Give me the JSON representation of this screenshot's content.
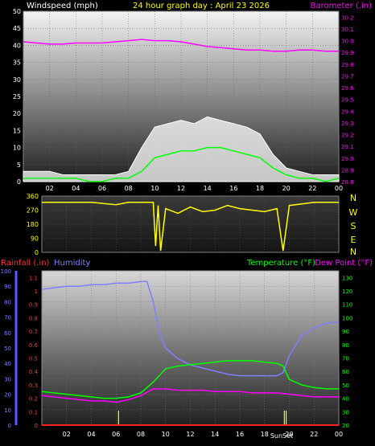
{
  "header": {
    "windspeed_label": "Windspeed (mph)",
    "graph_title": "24 hour graph day : April 23 2026",
    "barometer_label": "Barometer (.in)"
  },
  "direction": {
    "compass": [
      "N",
      "W",
      "S",
      "E",
      "N"
    ]
  },
  "bottom_header": {
    "rainfall_label": "Rainfall (.in)",
    "humidity_label": "Humidity",
    "temperature_label": "Temperature (°F)",
    "dewpoint_label": "Dew Point (°F)"
  },
  "markers": {
    "sunrise": "06",
    "sunset": "SunSet"
  },
  "colors": {
    "wind": "#ffffff",
    "wind_avg": "#00ff00",
    "barometer": "#ff00ff",
    "direction": "#ffff00",
    "temperature": "#00ff00",
    "dewpoint": "#ff00ff",
    "humidity": "#7f7fff",
    "rainfall": "#ff2020"
  },
  "chart_data": [
    {
      "type": "line",
      "x_ticks": [
        "02",
        "04",
        "06",
        "08",
        "10",
        "12",
        "14",
        "16",
        "18",
        "20",
        "22",
        "00"
      ],
      "y_left_ticks": [
        0,
        5,
        10,
        15,
        20,
        25,
        30,
        35,
        40,
        45,
        50
      ],
      "y_right_ticks": [
        28.8,
        28.9,
        29.0,
        29.1,
        29.2,
        29.3,
        29.4,
        29.5,
        29.6,
        29.7,
        29.8,
        29.9,
        30.0,
        30.1,
        30.2
      ],
      "ylim_left": [
        0,
        50
      ],
      "ylim_right": [
        28.8,
        30.25
      ],
      "series": [
        {
          "name": "Windspeed (mph)",
          "axis": "left",
          "x": [
            0,
            1,
            2,
            3,
            4,
            5,
            6,
            7,
            8,
            9,
            10,
            11,
            12,
            13,
            14,
            15,
            16,
            17,
            18,
            19,
            20,
            21,
            22,
            23,
            24
          ],
          "values": [
            1,
            1,
            1,
            1,
            1,
            0,
            0,
            1,
            1,
            3,
            7,
            8,
            9,
            9,
            10,
            10,
            9,
            8,
            7,
            4,
            2,
            1,
            1,
            0,
            1
          ]
        },
        {
          "name": "Wind gust (mph)",
          "axis": "left",
          "x": [
            0,
            1,
            2,
            3,
            4,
            5,
            6,
            7,
            8,
            9,
            10,
            11,
            12,
            13,
            14,
            15,
            16,
            17,
            18,
            19,
            20,
            21,
            22,
            23,
            24
          ],
          "values": [
            3,
            3,
            3,
            2,
            2,
            2,
            2,
            2,
            3,
            10,
            16,
            17,
            18,
            17,
            19,
            18,
            17,
            16,
            14,
            8,
            4,
            3,
            2,
            2,
            2
          ]
        },
        {
          "name": "Barometer (.in)",
          "axis": "right",
          "x": [
            0,
            1,
            2,
            3,
            4,
            5,
            6,
            7,
            8,
            9,
            10,
            11,
            12,
            13,
            14,
            15,
            16,
            17,
            18,
            19,
            20,
            21,
            22,
            23,
            24
          ],
          "values": [
            29.99,
            29.98,
            29.97,
            29.97,
            29.98,
            29.98,
            29.98,
            29.99,
            30.0,
            30.01,
            30.0,
            30.0,
            29.99,
            29.97,
            29.95,
            29.94,
            29.93,
            29.92,
            29.92,
            29.91,
            29.91,
            29.92,
            29.92,
            29.91,
            29.91
          ]
        }
      ]
    },
    {
      "type": "line",
      "x_ticks": [],
      "y_ticks": [
        0,
        90,
        180,
        270,
        360
      ],
      "ylim": [
        0,
        360
      ],
      "series": [
        {
          "name": "Wind direction",
          "x": [
            0,
            2,
            4,
            6,
            7,
            8,
            8.5,
            9,
            9.2,
            9.4,
            9.6,
            10,
            11,
            12,
            13,
            14,
            15,
            16,
            17,
            18,
            19,
            19.5,
            20,
            22,
            24
          ],
          "values": [
            320,
            320,
            320,
            305,
            320,
            320,
            320,
            320,
            40,
            300,
            10,
            280,
            250,
            290,
            260,
            270,
            300,
            280,
            270,
            260,
            280,
            10,
            300,
            320,
            320
          ]
        }
      ]
    },
    {
      "type": "line",
      "x_ticks": [
        "02",
        "04",
        "06",
        "08",
        "10",
        "12",
        "14",
        "16",
        "18",
        "20",
        "22",
        "00"
      ],
      "y_left_ticks": [
        0,
        10,
        20,
        30,
        40,
        50,
        60,
        70,
        80,
        90,
        100
      ],
      "y_rain_ticks": [
        0,
        0.1,
        0.2,
        0.3,
        0.4,
        0.5,
        0.6,
        0.7,
        0.8,
        0.9,
        1,
        1.1
      ],
      "y_right_ticks": [
        20,
        30,
        40,
        50,
        60,
        70,
        80,
        90,
        100,
        110,
        120,
        130
      ],
      "ylim_humidity": [
        0,
        100
      ],
      "ylim_rain": [
        0,
        1.15
      ],
      "ylim_temp": [
        20,
        135
      ],
      "series": [
        {
          "name": "Humidity",
          "axis": "left",
          "x": [
            0,
            1,
            2,
            3,
            4,
            5,
            6,
            7,
            8,
            8.5,
            9,
            9.5,
            10,
            11,
            12,
            13,
            14,
            15,
            16,
            17,
            18,
            19,
            19.5,
            20,
            21,
            22,
            23,
            24
          ],
          "values": [
            88,
            89,
            90,
            90,
            91,
            91,
            92,
            92,
            93,
            93,
            80,
            60,
            50,
            43,
            39,
            37,
            35,
            33,
            32,
            32,
            32,
            32,
            34,
            45,
            58,
            63,
            66,
            67
          ]
        },
        {
          "name": "Temperature (°F)",
          "axis": "right",
          "x": [
            0,
            1,
            2,
            3,
            4,
            5,
            6,
            7,
            8,
            9,
            10,
            11,
            12,
            13,
            14,
            15,
            16,
            17,
            18,
            19,
            19.5,
            20,
            21,
            22,
            23,
            24
          ],
          "values": [
            45,
            44,
            43,
            42,
            41,
            40,
            40,
            41,
            44,
            52,
            62,
            64,
            65,
            66,
            67,
            68,
            68,
            68,
            67,
            66,
            64,
            54,
            50,
            48,
            47,
            47
          ]
        },
        {
          "name": "Dew Point (°F)",
          "axis": "right",
          "x": [
            0,
            1,
            2,
            3,
            4,
            5,
            6,
            7,
            8,
            9,
            10,
            11,
            12,
            13,
            14,
            15,
            16,
            17,
            18,
            19,
            20,
            21,
            22,
            23,
            24
          ],
          "values": [
            42,
            41,
            40,
            39,
            38,
            38,
            37,
            39,
            42,
            47,
            47,
            46,
            46,
            46,
            45,
            45,
            45,
            44,
            44,
            44,
            43,
            42,
            41,
            41,
            41
          ]
        },
        {
          "name": "Rainfall (.in)",
          "axis": "rain",
          "x": [
            0,
            24
          ],
          "values": [
            0,
            0
          ]
        }
      ],
      "sun_markers_x": [
        6.2,
        19.6,
        19.75
      ]
    }
  ]
}
